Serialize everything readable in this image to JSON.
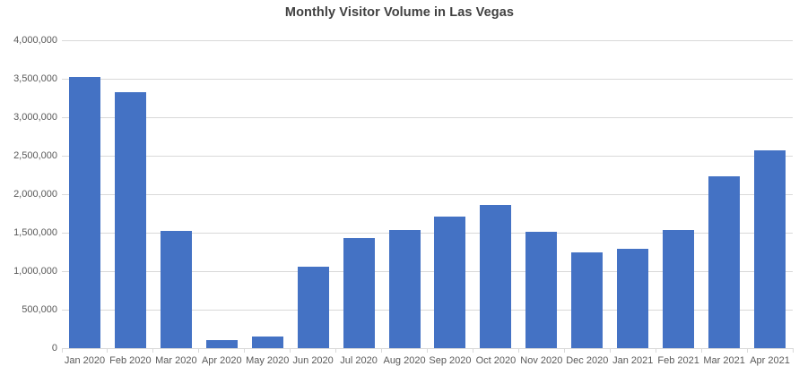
{
  "page": {
    "title": "Monthly Visitor Volume in Las Vegas"
  },
  "colors": {
    "bar": "#4472C4",
    "gridline": "#D9D9D9",
    "axis_line": "#D9D9D9",
    "axis_text": "#595959",
    "title_text": "#404040",
    "background": "#FFFFFF"
  },
  "chart_data": {
    "type": "bar",
    "title": "Monthly Visitor Volume in Las Vegas",
    "categories": [
      "Jan 2020",
      "Feb 2020",
      "Mar 2020",
      "Apr 2020",
      "May 2020",
      "Jun 2020",
      "Jul 2020",
      "Aug 2020",
      "Sep 2020",
      "Oct 2020",
      "Nov 2020",
      "Dec 2020",
      "Jan 2021",
      "Feb 2021",
      "Mar 2021",
      "Apr 2021"
    ],
    "values": [
      3527500,
      3322100,
      1525200,
      106900,
      151600,
      1062300,
      1431800,
      1538200,
      1704800,
      1857300,
      1514000,
      1245600,
      1291600,
      1537200,
      2235500,
      2567200
    ],
    "xlabel": "",
    "ylabel": "",
    "ylim": [
      0,
      4000000
    ],
    "ytick_step": 500000,
    "ytick_labels": [
      "0",
      "500,000",
      "1,000,000",
      "1,500,000",
      "2,000,000",
      "2,500,000",
      "3,000,000",
      "3,500,000",
      "4,000,000"
    ],
    "grid": true,
    "legend": false,
    "legend_position": "none",
    "bar_color": "#4472C4"
  }
}
